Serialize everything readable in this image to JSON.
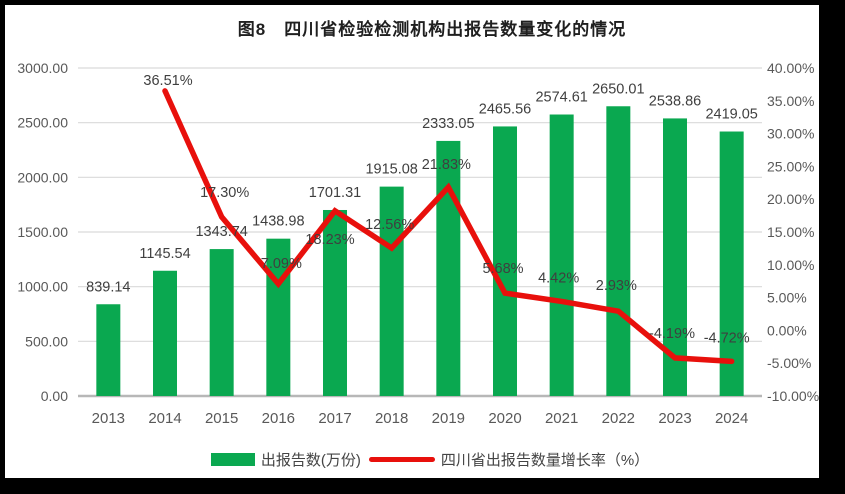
{
  "chart_data": {
    "type": "combo-bar-line-dual-axis",
    "title": "图8　四川省检验检测机构出报告数量变化的情况",
    "categories": [
      "2013",
      "2014",
      "2015",
      "2016",
      "2017",
      "2018",
      "2019",
      "2020",
      "2021",
      "2022",
      "2023",
      "2024"
    ],
    "series": [
      {
        "name": "出报告数(万份)",
        "type": "bar",
        "axis": "left",
        "values": [
          839.14,
          1145.54,
          1343.74,
          1438.98,
          1701.31,
          1915.08,
          2333.05,
          2465.56,
          2574.61,
          2650.01,
          2538.86,
          2419.05
        ],
        "labels": [
          "839.14",
          "1145.54",
          "1343.74",
          "1438.98",
          "1701.31",
          "1915.08",
          "2333.05",
          "2465.56",
          "2574.61",
          "2650.01",
          "2538.86",
          "2419.05"
        ]
      },
      {
        "name": "四川省出报告数量增长率（%）",
        "type": "line",
        "axis": "right",
        "values": [
          null,
          36.51,
          17.3,
          7.09,
          18.23,
          12.56,
          21.83,
          5.68,
          4.42,
          2.93,
          -4.19,
          -4.72
        ],
        "labels": [
          null,
          "36.51%",
          "17.30%",
          "7.09%",
          "18.23%",
          "12.56%",
          "21.83%",
          "5.68%",
          "4.42%",
          "2.93%",
          "-4.19%",
          "-4.72%"
        ]
      }
    ],
    "left_axis": {
      "min": 0,
      "max": 3000,
      "step": 500,
      "tick_values": [
        0,
        500,
        1000,
        1500,
        2000,
        2500,
        3000
      ],
      "tick_labels": [
        "0.00",
        "500.00",
        "1000.00",
        "1500.00",
        "2000.00",
        "2500.00",
        "3000.00"
      ]
    },
    "right_axis": {
      "min": -10,
      "max": 40,
      "step": 5,
      "tick_values": [
        -10,
        -5,
        0,
        5,
        10,
        15,
        20,
        25,
        30,
        35,
        40
      ],
      "tick_labels": [
        "-10.00%",
        "-5.00%",
        "0.00%",
        "5.00%",
        "10.00%",
        "15.00%",
        "20.00%",
        "25.00%",
        "30.00%",
        "35.00%",
        "40.00%"
      ]
    },
    "grid": "horizontal-primary-axis-only",
    "legend_position": "bottom",
    "render_hints": {
      "line_label_dx": [
        0,
        3,
        3,
        3,
        -5,
        -2,
        -2,
        -2,
        -3,
        -2,
        -3,
        -5
      ],
      "line_label_dy": [
        0,
        -11,
        -25,
        -21,
        28,
        -24,
        -23,
        -25,
        -24,
        -26,
        -25,
        -24
      ]
    }
  },
  "colors": {
    "bar": "#0aa850",
    "line": "#e8100c",
    "gridline": "#d9d9d9",
    "axis_line": "#b7b7b7",
    "tick_text": "#595959",
    "data_label_text": "#3f3f3f",
    "title_text": "#1f1f1f",
    "frame": "#000000",
    "background": "#ffffff"
  }
}
